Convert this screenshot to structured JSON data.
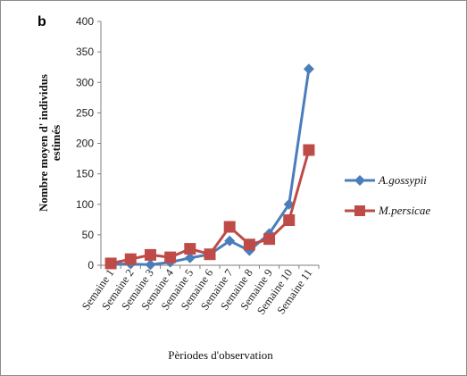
{
  "panel_label": "b",
  "colors": {
    "series1": "#4a7ebb",
    "series2": "#be4b48"
  },
  "chart_data": {
    "type": "line",
    "title": "",
    "xlabel": "Pèriodes d'observation",
    "ylabel_line1": "Nombre moyen d' individus",
    "ylabel_line2": "estimés",
    "ylim": [
      0,
      400
    ],
    "yticks": [
      0,
      50,
      100,
      150,
      200,
      250,
      300,
      350,
      400
    ],
    "categories": [
      "Semaine 1",
      "Semaine 2",
      "Semaine 3",
      "Semaine 4",
      "Semaine 5",
      "Semaine 6",
      "Semaine 7",
      "Semaine 8",
      "Semaine 9",
      "Semaine 10",
      "Semaine 11"
    ],
    "series": [
      {
        "name": "A.gossypii",
        "marker": "diamond",
        "values": [
          2,
          2,
          1,
          5,
          12,
          18,
          40,
          24,
          52,
          100,
          322
        ]
      },
      {
        "name": "M.persicae",
        "marker": "square",
        "values": [
          3,
          10,
          17,
          13,
          27,
          18,
          63,
          34,
          43,
          74,
          189
        ]
      }
    ],
    "legend_position": "right",
    "grid": false
  }
}
